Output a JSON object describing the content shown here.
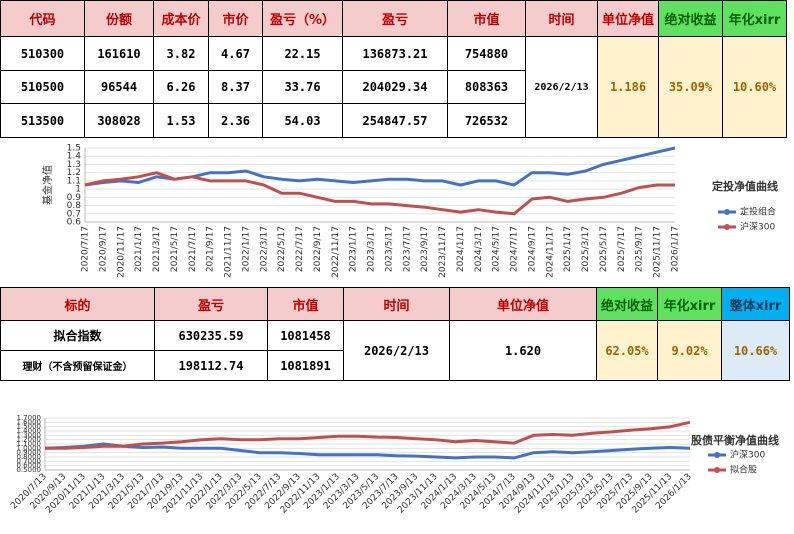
{
  "summary_table": {
    "headers": [
      "代码",
      "份额",
      "成本价",
      "市价",
      "盈亏（%）",
      "盈亏",
      "市值",
      "时间",
      "单位净值",
      "绝对收益",
      "年化xirr"
    ],
    "rows": [
      [
        "510300",
        "161610",
        "3.82",
        "4.67",
        "22.15",
        "136873.21",
        "754880"
      ],
      [
        "510500",
        "96544",
        "6.26",
        "8.37",
        "33.76",
        "204029.34",
        "808363"
      ],
      [
        "513500",
        "308028",
        "1.53",
        "2.36",
        "54.03",
        "254847.57",
        "726532"
      ]
    ],
    "time": "2026/2/13",
    "unit_nav": "1.186",
    "abs_return": "35.09%",
    "xirr": "10.60%"
  },
  "portfolio_table": {
    "headers": [
      "标的",
      "盈亏",
      "市值",
      "时间",
      "单位净值",
      "绝对收益",
      "年化xirr",
      "整体xirr"
    ],
    "rows": [
      [
        "拟合指数",
        "630235.59",
        "1081458"
      ],
      [
        "理财（不含预留保证金）",
        "198112.74",
        "1081891"
      ]
    ],
    "time": "2026/2/13",
    "unit_nav": "1.620",
    "abs_return": "62.05%",
    "xirr": "9.02%",
    "overall_xirr": "10.66%"
  },
  "chart_data": [
    {
      "type": "line",
      "title": "定投净值曲线",
      "y_label": "基金净值",
      "grid": true,
      "categories": [
        "2020/7/17",
        "2020/9/17",
        "2020/11/17",
        "2021/1/17",
        "2021/3/17",
        "2021/5/17",
        "2021/7/17",
        "2021/9/17",
        "2021/11/17",
        "2022/1/17",
        "2022/3/17",
        "2022/5/17",
        "2022/7/17",
        "2022/9/17",
        "2022/11/17",
        "2023/1/17",
        "2023/3/17",
        "2023/5/17",
        "2023/7/17",
        "2023/9/17",
        "2023/11/17",
        "2024/1/17",
        "2024/3/17",
        "2024/5/17",
        "2024/7/17",
        "2024/9/17",
        "2024/11/17",
        "2025/1/17",
        "2025/3/17",
        "2025/5/17",
        "2025/7/17",
        "2025/9/17",
        "2025/11/17",
        "2026/1/17"
      ],
      "ylim": [
        0.6,
        1.5
      ],
      "yticks": [
        0.6,
        0.7,
        0.8,
        0.9,
        1,
        1.1,
        1.2,
        1.3,
        1.4,
        1.5
      ],
      "series": [
        {
          "name": "定投组合",
          "color": "#4472c4",
          "values": [
            1.05,
            1.08,
            1.1,
            1.08,
            1.15,
            1.12,
            1.15,
            1.2,
            1.2,
            1.22,
            1.15,
            1.12,
            1.1,
            1.12,
            1.1,
            1.08,
            1.1,
            1.12,
            1.12,
            1.1,
            1.1,
            1.05,
            1.1,
            1.1,
            1.05,
            1.2,
            1.2,
            1.18,
            1.22,
            1.3,
            1.35,
            1.4,
            1.45,
            1.5
          ]
        },
        {
          "name": "沪深300",
          "color": "#c0504d",
          "values": [
            1.05,
            1.1,
            1.12,
            1.15,
            1.2,
            1.12,
            1.15,
            1.1,
            1.1,
            1.1,
            1.05,
            0.95,
            0.95,
            0.9,
            0.85,
            0.85,
            0.82,
            0.82,
            0.8,
            0.78,
            0.75,
            0.72,
            0.75,
            0.72,
            0.7,
            0.88,
            0.9,
            0.85,
            0.88,
            0.9,
            0.95,
            1.02,
            1.05,
            1.05
          ]
        }
      ]
    },
    {
      "type": "line",
      "title": "股债平衡净值曲线",
      "grid": true,
      "categories": [
        "2020/7/13",
        "2020/9/13",
        "2020/11/13",
        "2021/1/13",
        "2021/3/13",
        "2021/5/13",
        "2021/7/13",
        "2021/9/13",
        "2021/11/13",
        "2022/1/13",
        "2022/3/13",
        "2022/5/13",
        "2022/7/13",
        "2022/9/13",
        "2022/11/13",
        "2023/1/13",
        "2023/3/13",
        "2023/5/13",
        "2023/7/13",
        "2023/9/13",
        "2023/11/13",
        "2024/1/13",
        "2024/3/13",
        "2024/5/13",
        "2024/7/13",
        "2024/9/13",
        "2024/11/13",
        "2025/1/13",
        "2025/3/13",
        "2025/5/13",
        "2025/7/13",
        "2025/9/13",
        "2025/11/13",
        "2026/1/13"
      ],
      "ylim": [
        0.5,
        1.7
      ],
      "yticks": [
        {
          "value": 0.5,
          "label": "0.5000"
        },
        {
          "value": 0.6,
          "label": "0.6000"
        },
        {
          "value": 0.7,
          "label": "0.7000"
        },
        {
          "value": 0.8,
          "label": "0.8000"
        },
        {
          "value": 0.9,
          "label": "0.9000"
        },
        {
          "value": 1,
          "label": "1.0000"
        },
        {
          "value": 1.1,
          "label": "1.1000"
        },
        {
          "value": 1.2,
          "label": "1.2000"
        },
        {
          "value": 1.3,
          "label": "1.3000"
        },
        {
          "value": 1.4,
          "label": "1.4000"
        },
        {
          "value": 1.5,
          "label": "1.5000"
        },
        {
          "value": 1.6,
          "label": "1.6000"
        },
        {
          "value": 1.7,
          "label": "1.7000"
        }
      ],
      "series": [
        {
          "name": "沪深300",
          "color": "#4472c4",
          "values": [
            1.0,
            1.02,
            1.05,
            1.1,
            1.05,
            1.02,
            1.03,
            1.0,
            1.0,
            1.0,
            0.95,
            0.9,
            0.9,
            0.88,
            0.85,
            0.85,
            0.85,
            0.85,
            0.83,
            0.82,
            0.8,
            0.78,
            0.8,
            0.8,
            0.78,
            0.9,
            0.92,
            0.9,
            0.92,
            0.95,
            0.98,
            1.0,
            1.02,
            1.0
          ]
        },
        {
          "name": "拟合股",
          "color": "#c0504d",
          "values": [
            1.0,
            1.0,
            1.02,
            1.05,
            1.05,
            1.1,
            1.12,
            1.15,
            1.2,
            1.22,
            1.2,
            1.2,
            1.22,
            1.22,
            1.25,
            1.28,
            1.28,
            1.26,
            1.25,
            1.22,
            1.2,
            1.15,
            1.18,
            1.15,
            1.12,
            1.3,
            1.32,
            1.3,
            1.35,
            1.38,
            1.42,
            1.45,
            1.5,
            1.6
          ]
        }
      ]
    }
  ]
}
